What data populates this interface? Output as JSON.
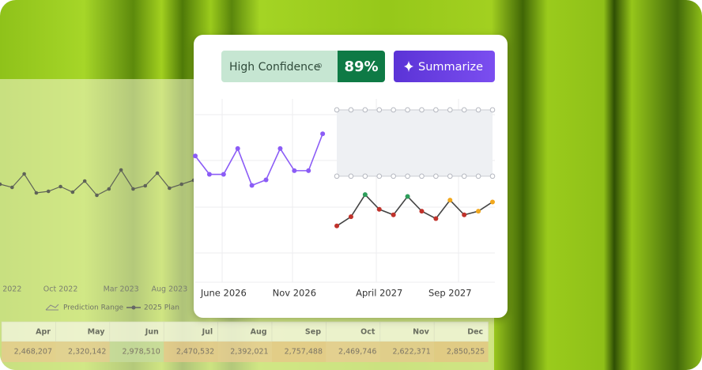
{
  "chart_data": [
    {
      "type": "line",
      "categories": [
        null,
        "2022",
        null,
        null,
        null,
        "Oct 2022",
        null,
        null,
        null,
        null,
        "Mar 2023",
        null,
        null,
        null,
        "Aug 2023",
        null,
        null
      ],
      "series": [
        {
          "color": "#5f6358",
          "values": [
            27,
            23,
            40,
            16,
            18,
            24,
            17,
            31,
            13,
            21,
            45,
            21,
            25,
            41,
            22,
            27,
            32
          ]
        }
      ],
      "ylim": [
        0,
        100
      ]
    },
    {
      "type": "line",
      "categories": [
        null,
        null,
        "June 2026",
        null,
        null,
        null,
        null,
        "Nov 2026",
        null,
        null,
        null,
        null,
        null,
        "April 2027",
        null,
        null,
        null,
        null,
        "Sep 2027",
        null,
        null,
        null
      ],
      "series": [
        {
          "color": "#8b5cf6",
          "values": [
            69,
            59,
            59,
            73,
            53,
            56,
            73,
            61,
            61,
            81,
            null,
            null,
            null,
            null,
            null,
            null,
            null,
            null,
            null,
            null,
            null,
            null
          ]
        },
        {
          "color": "#444444",
          "values": [
            null,
            null,
            null,
            null,
            null,
            null,
            null,
            null,
            null,
            null,
            31,
            36,
            48,
            40,
            37,
            47,
            39,
            35,
            45,
            37,
            39,
            44
          ],
          "point_colors": [
            null,
            null,
            null,
            null,
            null,
            null,
            null,
            null,
            null,
            null,
            "#c0322b",
            "#c0322b",
            "#2e9e5b",
            "#c0322b",
            "#c0322b",
            "#2e9e5b",
            "#c0322b",
            "#c0322b",
            "#f2a81d",
            "#c0322b",
            "#f2a81d",
            "#f2a81d"
          ]
        }
      ],
      "range": {
        "color": "#eef0f3",
        "upper": [
          null,
          null,
          null,
          null,
          null,
          null,
          null,
          null,
          null,
          null,
          94,
          94,
          94,
          94,
          94,
          94,
          94,
          94,
          94,
          94,
          94,
          94
        ],
        "lower": [
          null,
          null,
          null,
          null,
          null,
          null,
          null,
          null,
          null,
          null,
          58,
          58,
          58,
          58,
          58,
          58,
          58,
          58,
          58,
          58,
          58,
          58
        ]
      },
      "ylim": [
        0,
        100
      ]
    }
  ],
  "legend": [
    "Prediction Range",
    "2025 Plan"
  ],
  "table": {
    "header": [
      "Apr",
      "May",
      "Jun",
      "Jul",
      "Aug",
      "Sep",
      "Oct",
      "Nov",
      "Dec"
    ],
    "values": [
      "2,468,207",
      "2,320,142",
      "2,978,510",
      "2,470,532",
      "2,392,021",
      "2,757,488",
      "2,469,746",
      "2,622,371",
      "2,850,525"
    ]
  },
  "badge": {
    "label": "High Confidence",
    "value": "89%"
  },
  "button": "Summarize"
}
